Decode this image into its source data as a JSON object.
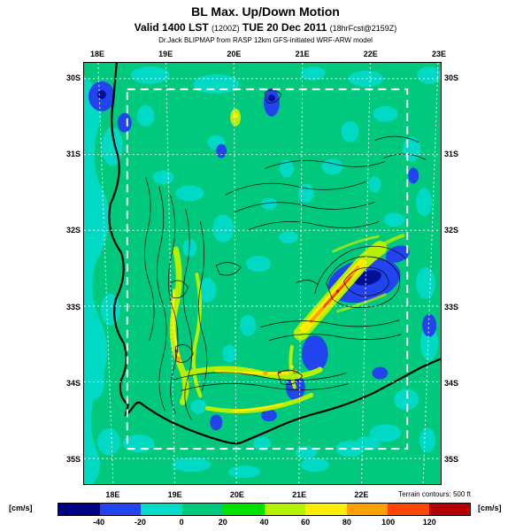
{
  "header": {
    "title": "BL Max. Up/Down Motion",
    "valid_prefix": "Valid 1400 LST ",
    "valid_paren1": "(1200Z)",
    "valid_mid": " TUE 20 Dec 2011 ",
    "valid_paren2": "(18hrFcst@2159Z)",
    "model_line": "Dr.Jack BLIPMAP from RASP 12km GFS-initiated WRF-ARW model"
  },
  "chart_data": {
    "type": "heatmap",
    "variant": "filled-contour meteorological map (BLIPMAP) with terrain contour overlay",
    "title": "BL Max. Up/Down Motion",
    "valid_line": "Valid 1400 LST (1200Z) TUE 20 Dec 2011 (18hrFcst@2159Z)",
    "model_line": "Dr.Jack BLIPMAP from RASP 12km GFS-initiated WRF-ARW model",
    "units": "cm/s",
    "x_ticks_top": [
      "18E",
      "19E",
      "20E",
      "21E",
      "22E",
      "23E"
    ],
    "x_ticks_bottom": [
      "18E",
      "19E",
      "20E",
      "21E",
      "22E"
    ],
    "y_ticks_left": [
      "30S",
      "31S",
      "32S",
      "33S",
      "34S",
      "35S"
    ],
    "y_ticks_right": [
      "30S",
      "31S",
      "32S",
      "33S",
      "34S",
      "35S"
    ],
    "x_range": [
      "18E",
      "23E"
    ],
    "y_range": [
      "30S",
      "35S"
    ],
    "grid": "white dashed lat/lon graticule every 1 degree",
    "domain_outline": "white dashed rectangle (model domain boundary)",
    "base_fill_value_range": "0 to 20 cm/s (green)",
    "colorbar": {
      "left_label": "[cm/s]",
      "right_label": "[cm/s]",
      "ticks": [
        "-40",
        "-20",
        "0",
        "20",
        "40",
        "60",
        "80",
        "100",
        "120"
      ],
      "tick_step": 20,
      "segment_colors": [
        "#000082",
        "#2244ee",
        "#00dcc8",
        "#00c87d",
        "#00e100",
        "#b4f000",
        "#ffee00",
        "#ffa000",
        "#ff4600",
        "#b40000"
      ]
    },
    "terrain_note": "Terrain contours: 500 ft",
    "feature_colors": {
      "base_green": "#00c87d",
      "sink_cyan": "#00dcc8",
      "sink_blue": "#2244ee",
      "strong_sink_navy": "#000f96",
      "lift_yellow_green": "#b4f000",
      "lift_yellow": "#ffee00",
      "lift_orange": "#ffa000",
      "lift_red": "#ff4600",
      "terrain_contour": "#000000"
    }
  }
}
